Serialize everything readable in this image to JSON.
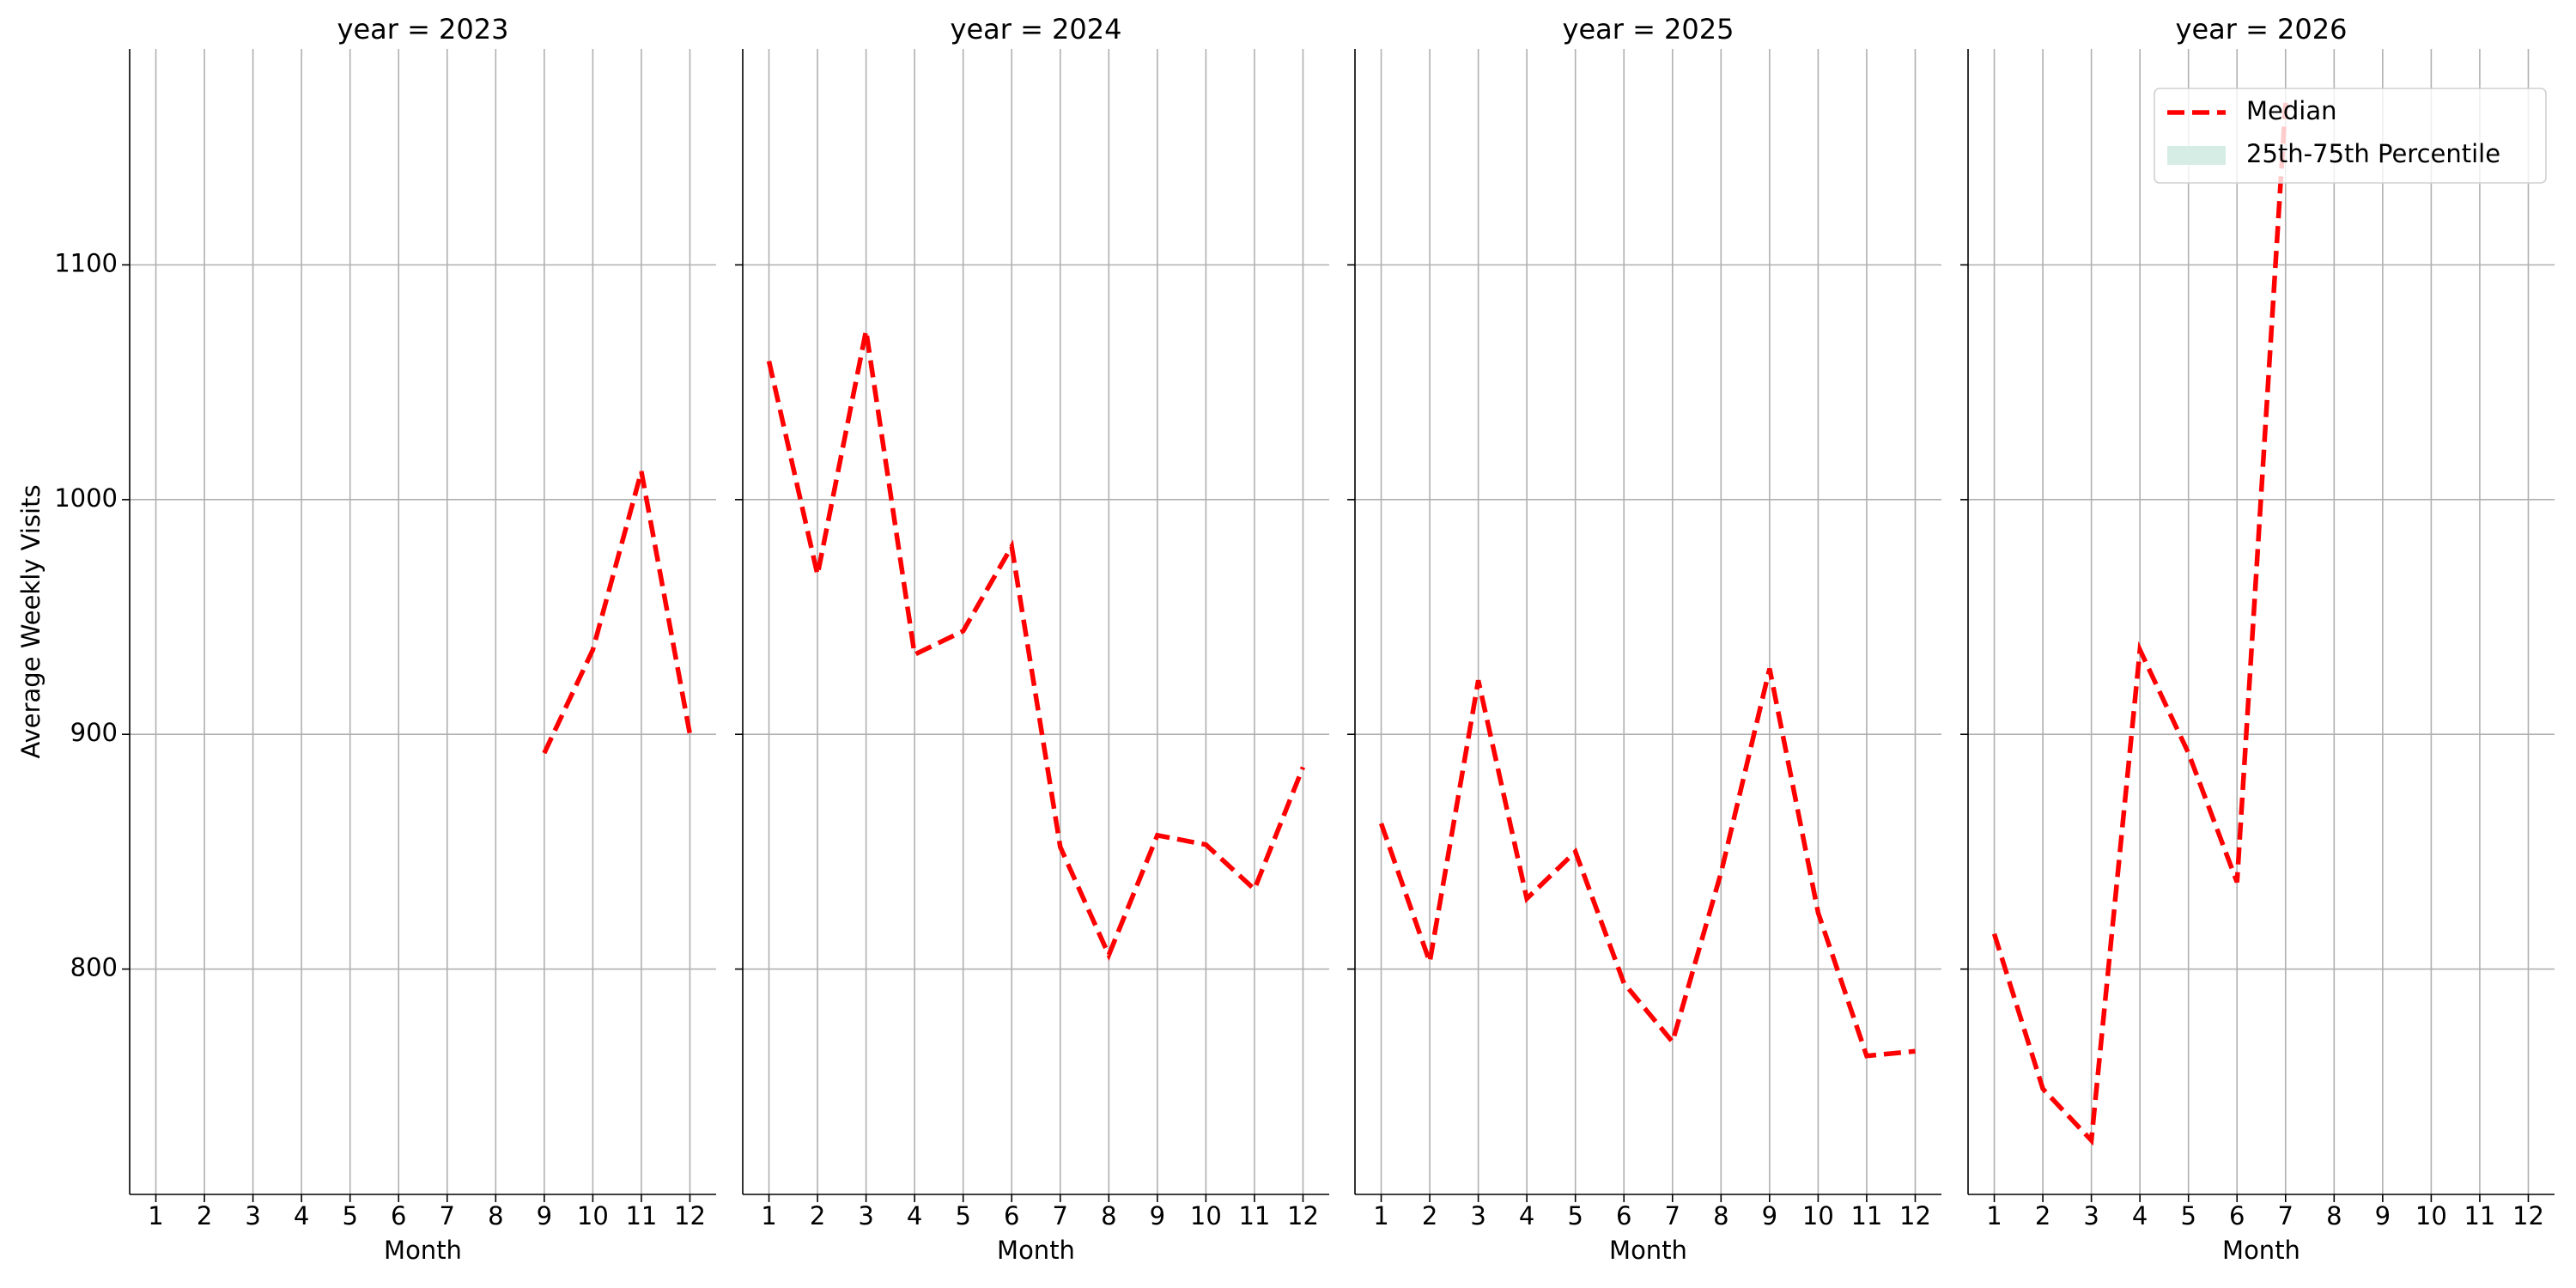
{
  "chart_data": [
    {
      "type": "line",
      "title": "year = 2023",
      "xlabel": "Month",
      "ylabel": "Average Weekly Visits",
      "x": [
        1,
        2,
        3,
        4,
        5,
        6,
        7,
        8,
        9,
        10,
        11,
        12
      ],
      "series": [
        {
          "name": "Median",
          "color": "#ff0000",
          "values": [
            null,
            null,
            null,
            null,
            null,
            null,
            null,
            null,
            892,
            936,
            1012,
            900
          ]
        }
      ],
      "xlim": [
        0.46,
        12.54
      ],
      "xticks": [
        1,
        2,
        3,
        4,
        5,
        6,
        7,
        8,
        9,
        10,
        11,
        12
      ],
      "ylim": [
        704,
        1192
      ],
      "yticks": [
        800,
        900,
        1000,
        1100
      ],
      "grid": true
    },
    {
      "type": "line",
      "title": "year = 2024",
      "xlabel": "Month",
      "x": [
        1,
        2,
        3,
        4,
        5,
        6,
        7,
        8,
        9,
        10,
        11,
        12
      ],
      "series": [
        {
          "name": "Median",
          "color": "#ff0000",
          "values": [
            1059,
            968,
            1072,
            934,
            944,
            980,
            852,
            806,
            857,
            853,
            834,
            886
          ]
        }
      ],
      "xlim": [
        0.46,
        12.54
      ],
      "xticks": [
        1,
        2,
        3,
        4,
        5,
        6,
        7,
        8,
        9,
        10,
        11,
        12
      ],
      "ylim": [
        704,
        1192
      ],
      "yticks": [
        800,
        900,
        1000,
        1100
      ],
      "grid": true
    },
    {
      "type": "line",
      "title": "year = 2025",
      "xlabel": "Month",
      "x": [
        1,
        2,
        3,
        4,
        5,
        6,
        7,
        8,
        9,
        10,
        11,
        12
      ],
      "series": [
        {
          "name": "Median",
          "color": "#ff0000",
          "values": [
            862,
            803,
            923,
            830,
            850,
            794,
            769,
            841,
            928,
            824,
            763,
            765
          ]
        }
      ],
      "xlim": [
        0.46,
        12.54
      ],
      "xticks": [
        1,
        2,
        3,
        4,
        5,
        6,
        7,
        8,
        9,
        10,
        11,
        12
      ],
      "ylim": [
        704,
        1192
      ],
      "yticks": [
        800,
        900,
        1000,
        1100
      ],
      "grid": true
    },
    {
      "type": "line",
      "title": "year = 2026",
      "xlabel": "Month",
      "x": [
        1,
        2,
        3,
        4,
        5,
        6,
        7,
        8,
        9,
        10,
        11,
        12
      ],
      "series": [
        {
          "name": "Median",
          "color": "#ff0000",
          "values": [
            815,
            749,
            727,
            936,
            892,
            837,
            1169,
            null,
            null,
            null,
            null,
            null
          ]
        },
        {
          "name": "25th-75th Percentile",
          "color": "#d5ede4"
        }
      ],
      "xlim": [
        0.46,
        12.54
      ],
      "xticks": [
        1,
        2,
        3,
        4,
        5,
        6,
        7,
        8,
        9,
        10,
        11,
        12
      ],
      "ylim": [
        704,
        1192
      ],
      "yticks": [
        800,
        900,
        1000,
        1100
      ],
      "grid": true,
      "legend": "upper right"
    }
  ]
}
